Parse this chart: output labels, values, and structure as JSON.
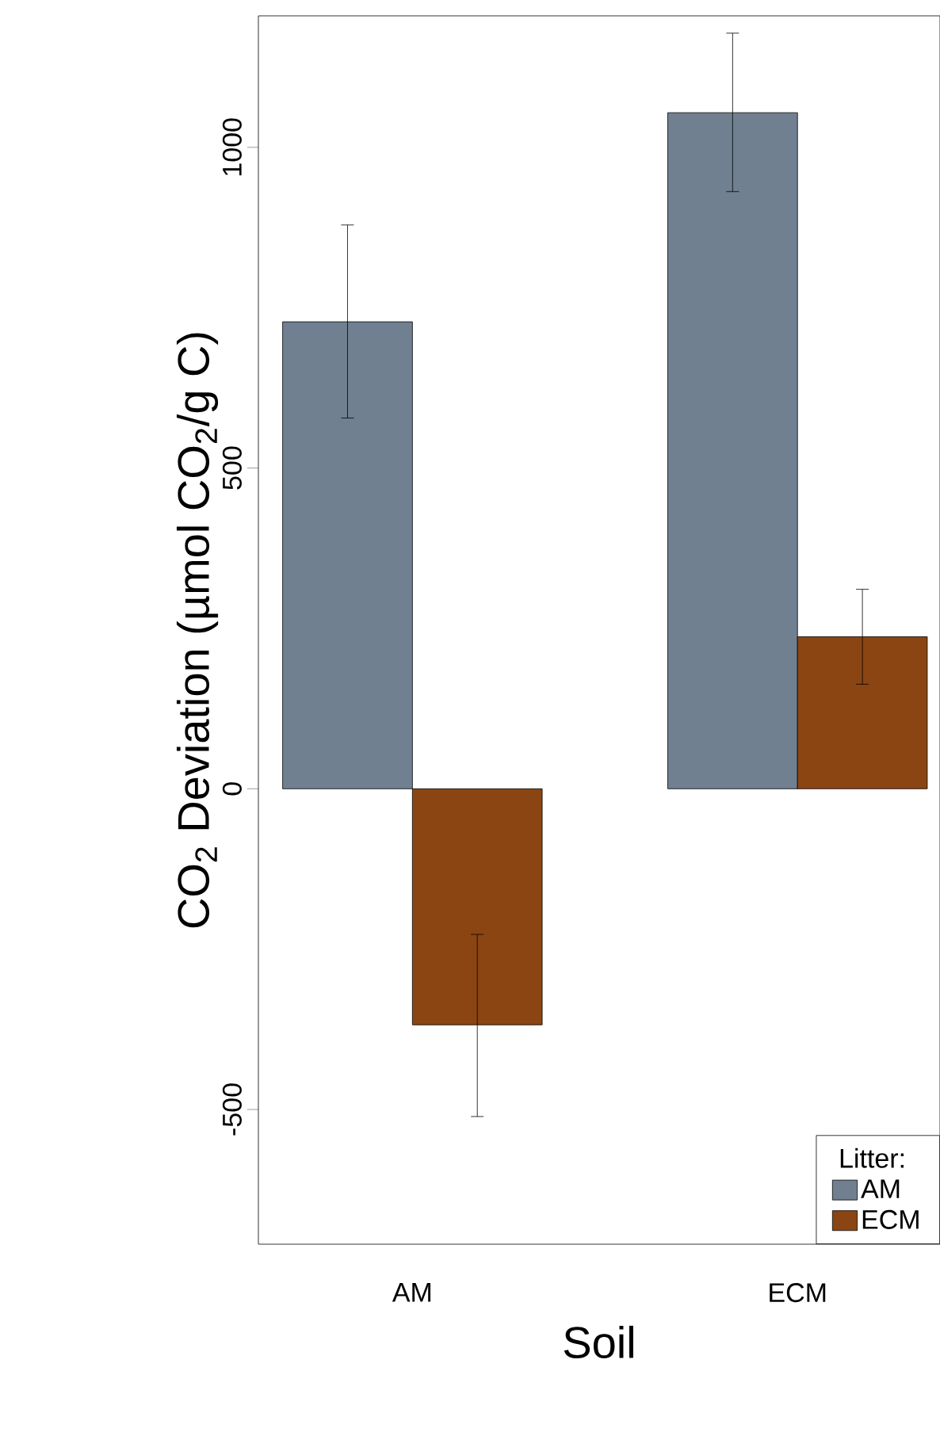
{
  "chart_data": {
    "type": "bar",
    "xlabel": "Soil",
    "ylabel": "CO$_{2}$ Deviation (µmol CO$_{2}$/g C)",
    "legend_title": "Litter:",
    "categories": [
      "AM",
      "ECM"
    ],
    "series": [
      {
        "name": "AM",
        "color": "#708090",
        "values": [
          728,
          1054
        ],
        "errors": [
          [
            578,
            879
          ],
          [
            931,
            1178
          ]
        ]
      },
      {
        "name": "ECM",
        "color": "#8b4513",
        "values": [
          -368,
          237
        ],
        "errors": [
          [
            -511,
            -227
          ],
          [
            163,
            311
          ]
        ]
      }
    ],
    "ylim": [
      -710,
      1205
    ],
    "yticks": [
      -500,
      0,
      500,
      1000
    ],
    "legend": "bottom right"
  }
}
